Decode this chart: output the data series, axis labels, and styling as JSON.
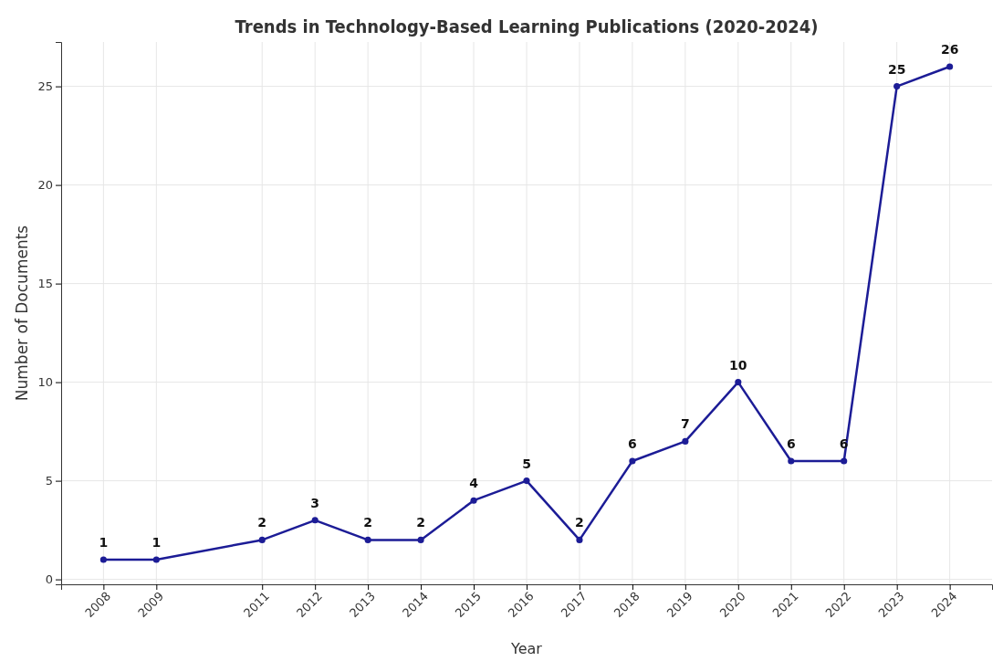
{
  "chart_data": {
    "type": "line",
    "title": "Trends in Technology-Based Learning Publications (2020-2024)",
    "xlabel": "Year",
    "ylabel": "Number of Documents",
    "x": [
      2008,
      2009,
      2011,
      2012,
      2013,
      2014,
      2015,
      2016,
      2017,
      2018,
      2019,
      2020,
      2021,
      2022,
      2023,
      2024
    ],
    "series": [
      {
        "color": "#1c1c96",
        "values": [
          1,
          1,
          2,
          3,
          2,
          2,
          4,
          5,
          2,
          6,
          7,
          10,
          6,
          6,
          25,
          26
        ]
      }
    ],
    "xlim": [
      2007.2,
      2024.8
    ],
    "xticks": [
      2008,
      2009,
      2011,
      2012,
      2013,
      2014,
      2015,
      2016,
      2017,
      2018,
      2019,
      2020,
      2021,
      2022,
      2023,
      2024
    ],
    "ylim": [
      -0.25,
      27.25
    ],
    "yticks": [
      0,
      5,
      10,
      15,
      20,
      25
    ],
    "grid": true,
    "marker": "circle",
    "line_style": "solid",
    "data_labels": true
  }
}
